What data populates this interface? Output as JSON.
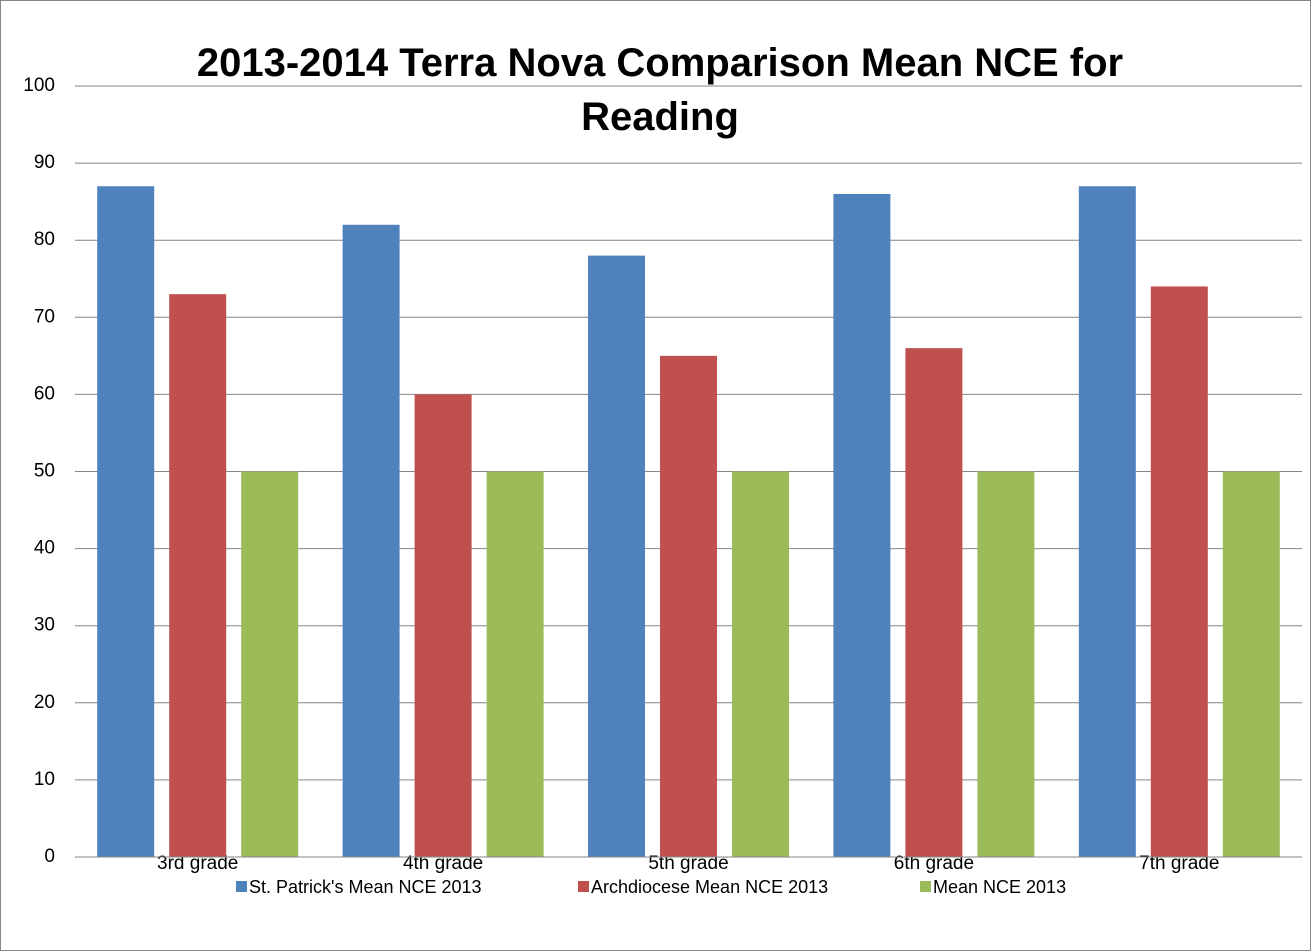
{
  "chart_data": {
    "type": "bar",
    "title": "2013-2014 Terra Nova Comparison Mean NCE for Reading",
    "categories": [
      "3rd grade",
      "4th grade",
      "5th grade",
      "6th grade",
      "7th grade"
    ],
    "series": [
      {
        "name": "St. Patrick's Mean NCE 2013",
        "color": "#4f81bd",
        "values": [
          87,
          82,
          78,
          86,
          87
        ]
      },
      {
        "name": "Archdiocese Mean NCE 2013",
        "color": "#c0504d",
        "values": [
          73,
          60,
          65,
          66,
          74
        ]
      },
      {
        "name": "Mean NCE 2013",
        "color": "#9bbb59",
        "values": [
          50,
          50,
          50,
          50,
          50
        ]
      }
    ],
    "ylim": [
      0,
      100
    ],
    "yticks": [
      0,
      10,
      20,
      30,
      40,
      50,
      60,
      70,
      80,
      90,
      100
    ],
    "grid": true,
    "legend": "bottom"
  }
}
